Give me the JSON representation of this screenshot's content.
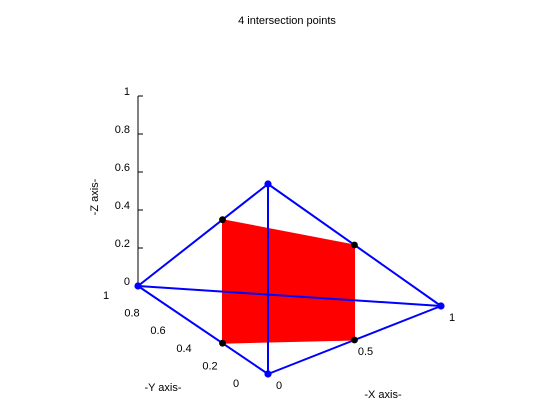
{
  "chart_data": {
    "type": "3d-line-mesh",
    "title": "4 intersection points",
    "xlabel": "-X axis-",
    "ylabel": "-Y axis-",
    "zlabel": "-Z axis-",
    "xlim": [
      0,
      1
    ],
    "ylim": [
      0,
      1
    ],
    "zlim": [
      0,
      1
    ],
    "x_ticks": [
      "0",
      "0.5",
      "1"
    ],
    "y_ticks": [
      "0",
      "0.2",
      "0.4",
      "0.6",
      "0.8",
      "1"
    ],
    "z_ticks": [
      "0",
      "0.2",
      "0.4",
      "0.6",
      "0.8",
      "1"
    ],
    "grid": false,
    "tetrahedron": {
      "color": "#0000ff",
      "vertices": [
        [
          0,
          0,
          0
        ],
        [
          1,
          0,
          0
        ],
        [
          0,
          1,
          0
        ],
        [
          0,
          0,
          1
        ]
      ],
      "edges": [
        [
          0,
          1
        ],
        [
          0,
          2
        ],
        [
          0,
          3
        ],
        [
          1,
          2
        ],
        [
          1,
          3
        ],
        [
          2,
          3
        ]
      ]
    },
    "intersection_plane": {
      "color": "#ff0000",
      "points_color": "#000000",
      "points": [
        [
          0,
          0.35,
          0
        ],
        [
          0.5,
          0,
          0
        ],
        [
          0.5,
          0,
          0.5
        ],
        [
          0,
          0.35,
          0.65
        ]
      ]
    }
  }
}
